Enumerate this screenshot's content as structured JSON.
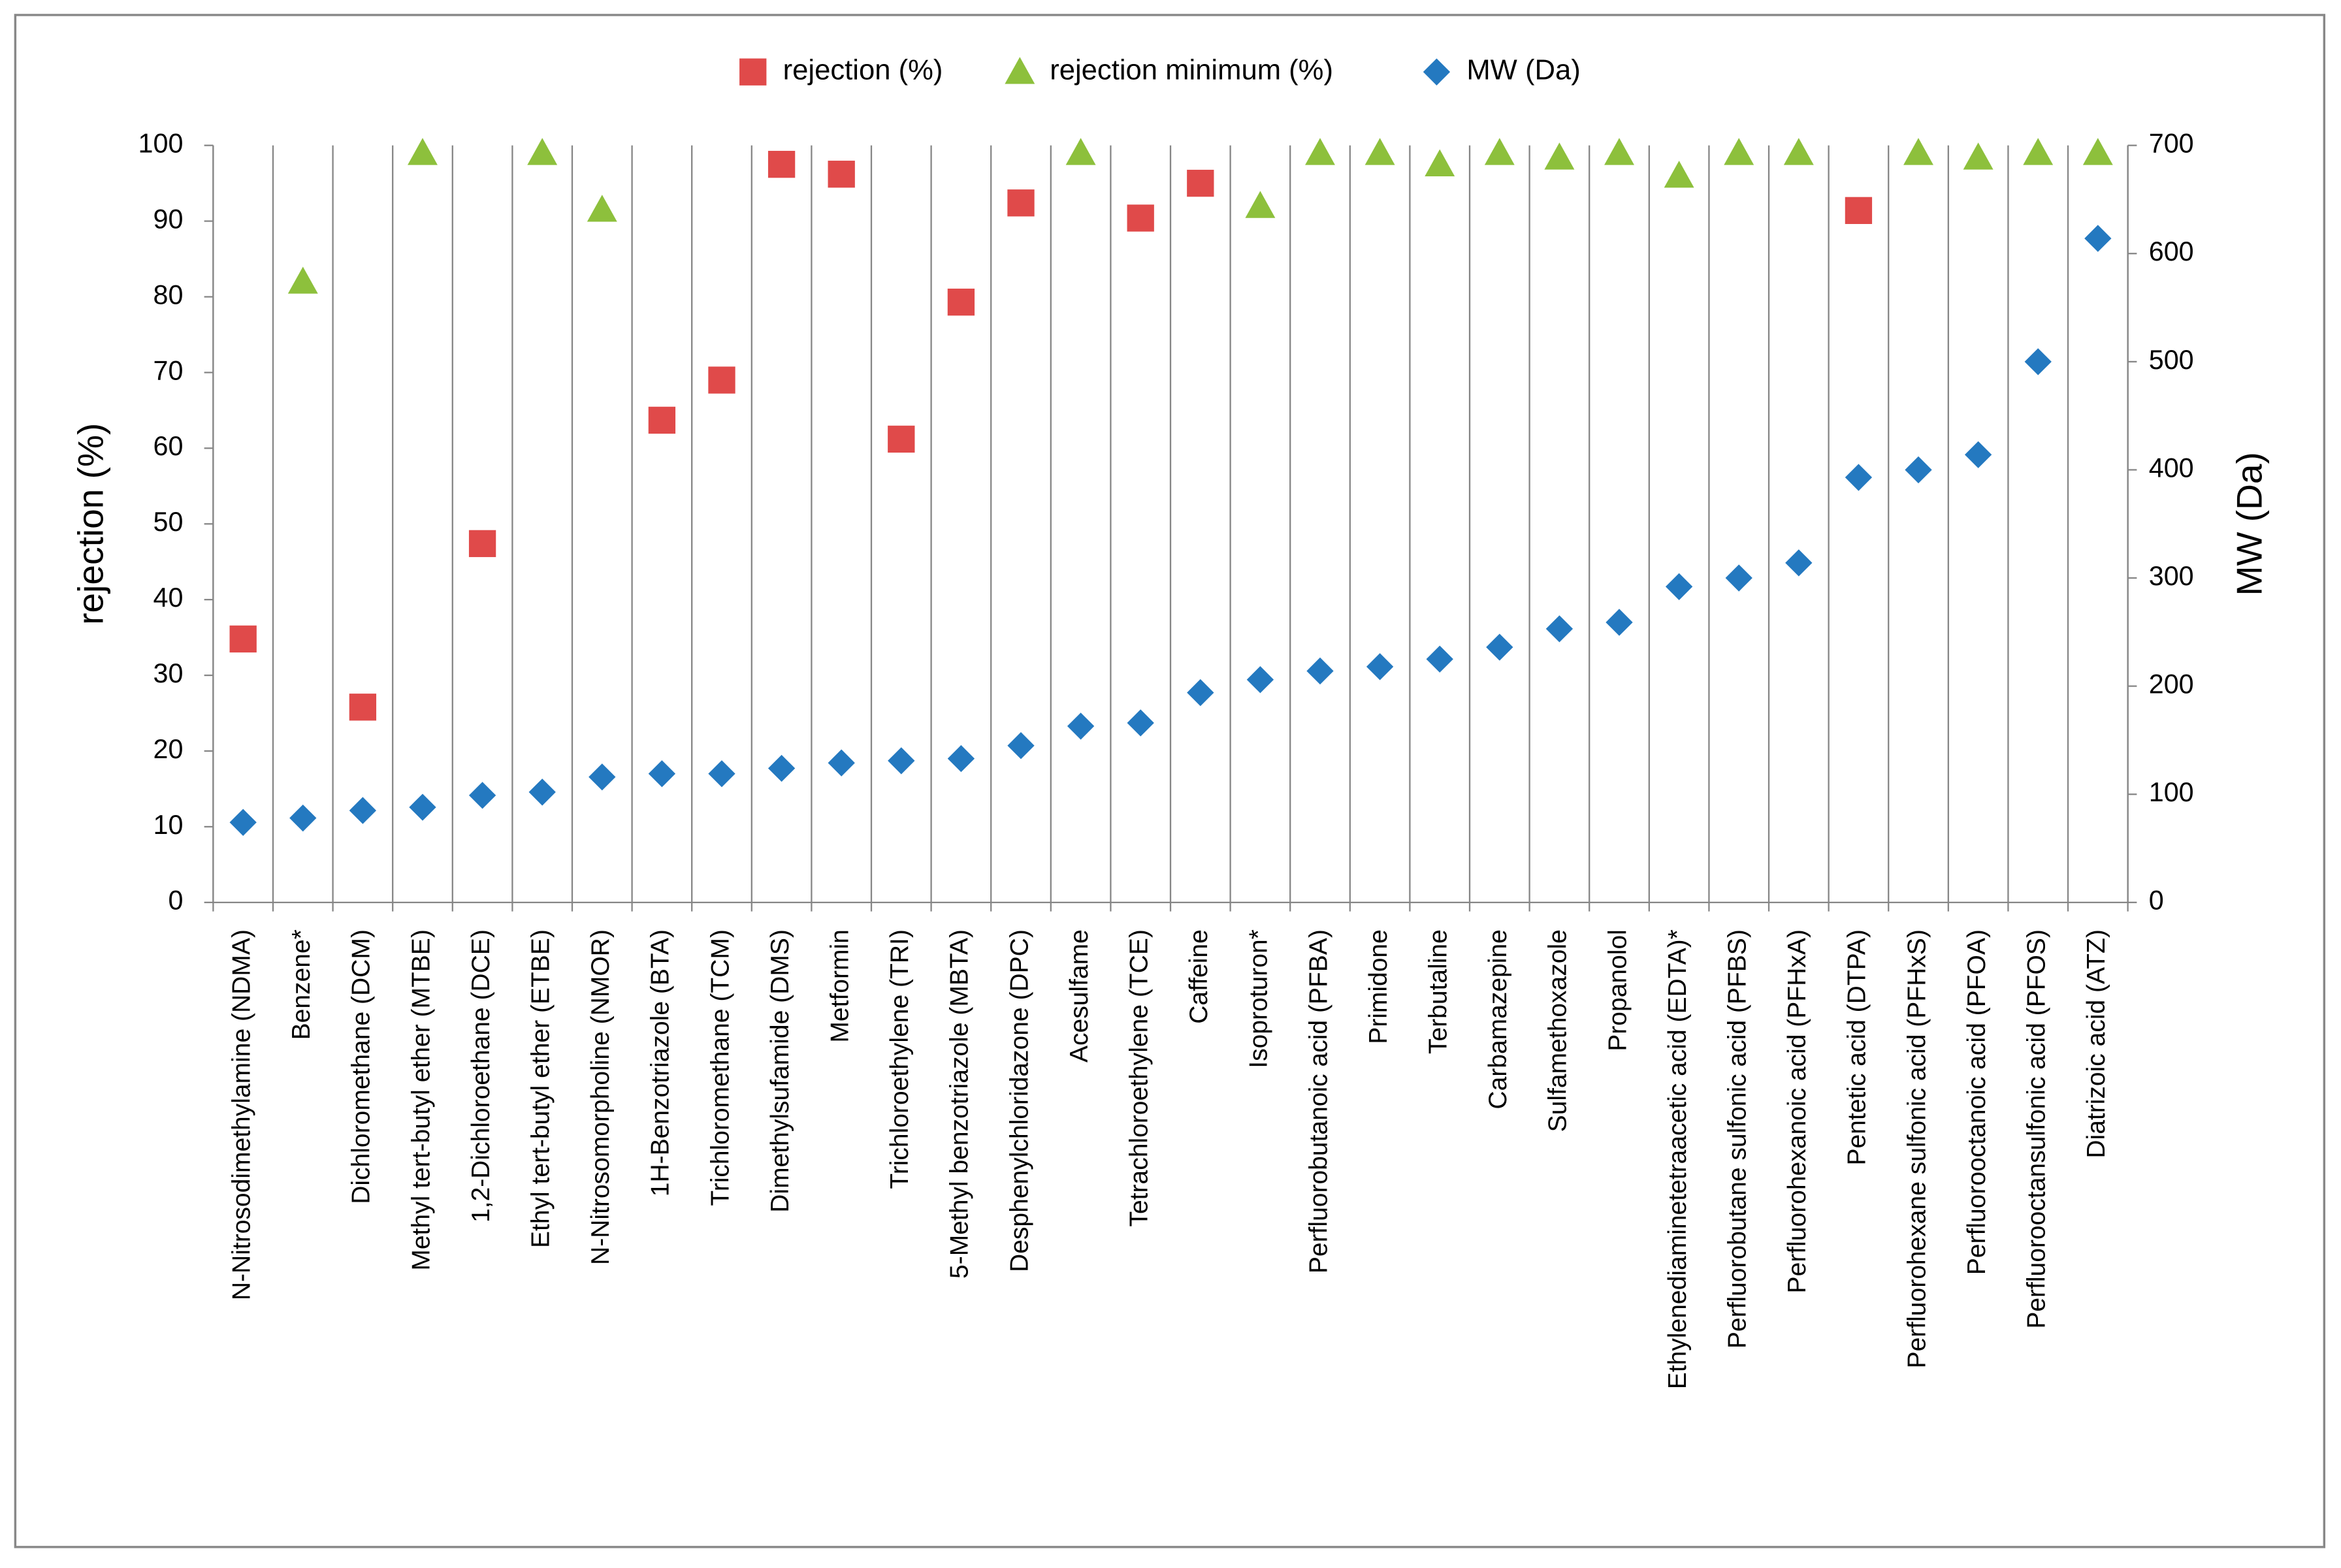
{
  "chart_data": {
    "type": "scatter",
    "categories": [
      "N-Nitrosodimethylamine (NDMA)",
      "Benzene*",
      "Dichloromethane (DCM)",
      "Methyl tert-butyl ether (MTBE)",
      "1,2-Dichloroethane (DCE)",
      "Ethyl tert-butyl ether (ETBE)",
      "N-Nitrosomorpholine (NMOR)",
      "1H-Benzotriazole (BTA)",
      "Trichloromethane (TCM)",
      "Dimethylsufamide (DMS)",
      "Metformin",
      "Trichloroethylene (TRI)",
      "5-Methyl benzotriazole (MBTA)",
      "Desphenylchloridazone (DPC)",
      "Acesulfame",
      "Tetrachloroethylene (TCE)",
      "Caffeine",
      "Isoproturon*",
      "Perfluorobutanoic acid (PFBA)",
      "Primidone",
      "Terbutaline",
      "Carbamazepine",
      "Sulfamethoxazole",
      "Propanolol",
      "Ethylenediaminetetraacetic acid (EDTA)*",
      "Perfluorobutane sulfonic acid (PFBS)",
      "Perfluorohexanoic acid (PFHxA)",
      "Pentetic acid (DTPA)",
      "Perfluorohexane sulfonic acid (PFHxS)",
      "Perfluorooctanoic acid (PFOA)",
      "Perfluorooctansulfonic acid (PFOS)",
      "Diatrizoic acid (ATZ)"
    ],
    "series": [
      {
        "name": "rejection (%)",
        "color": "#e04a4a",
        "marker": "square",
        "axis": "y",
        "values": [
          34.8,
          null,
          25.8,
          null,
          47.4,
          null,
          null,
          63.7,
          69,
          97.5,
          96.2,
          61.2,
          79.3,
          92.4,
          null,
          90.4,
          95,
          null,
          null,
          null,
          null,
          null,
          null,
          null,
          null,
          null,
          null,
          91.4,
          null,
          null,
          null,
          null
        ]
      },
      {
        "name": "rejection minimum (%)",
        "color": "#8dc03c",
        "marker": "triangle",
        "axis": "y",
        "values": [
          null,
          82,
          null,
          99,
          null,
          99,
          91.5,
          null,
          null,
          null,
          null,
          null,
          null,
          null,
          99,
          null,
          null,
          92,
          99,
          99,
          97.5,
          99,
          98.4,
          99,
          96,
          99,
          99,
          null,
          99,
          98.4,
          99,
          99
        ]
      },
      {
        "name": "MW (Da)",
        "color": "#2479c0",
        "marker": "diamond",
        "axis": "y2",
        "values": [
          74,
          78,
          85,
          88,
          99,
          102,
          116,
          119,
          119,
          124,
          129,
          131,
          133,
          145,
          163,
          166,
          194,
          206,
          214,
          218,
          225,
          236,
          253,
          259,
          292,
          300,
          314,
          393,
          400,
          414,
          500,
          614
        ]
      }
    ],
    "ylabel": "rejection (%)",
    "y2label": "MW (Da)",
    "ylim": [
      0,
      100
    ],
    "yticks": [
      0,
      10,
      20,
      30,
      40,
      50,
      60,
      70,
      80,
      90,
      100
    ],
    "y2lim": [
      0,
      700
    ],
    "y2ticks": [
      0,
      100,
      200,
      300,
      400,
      500,
      600,
      700
    ],
    "grid": "x",
    "legend": "top"
  }
}
